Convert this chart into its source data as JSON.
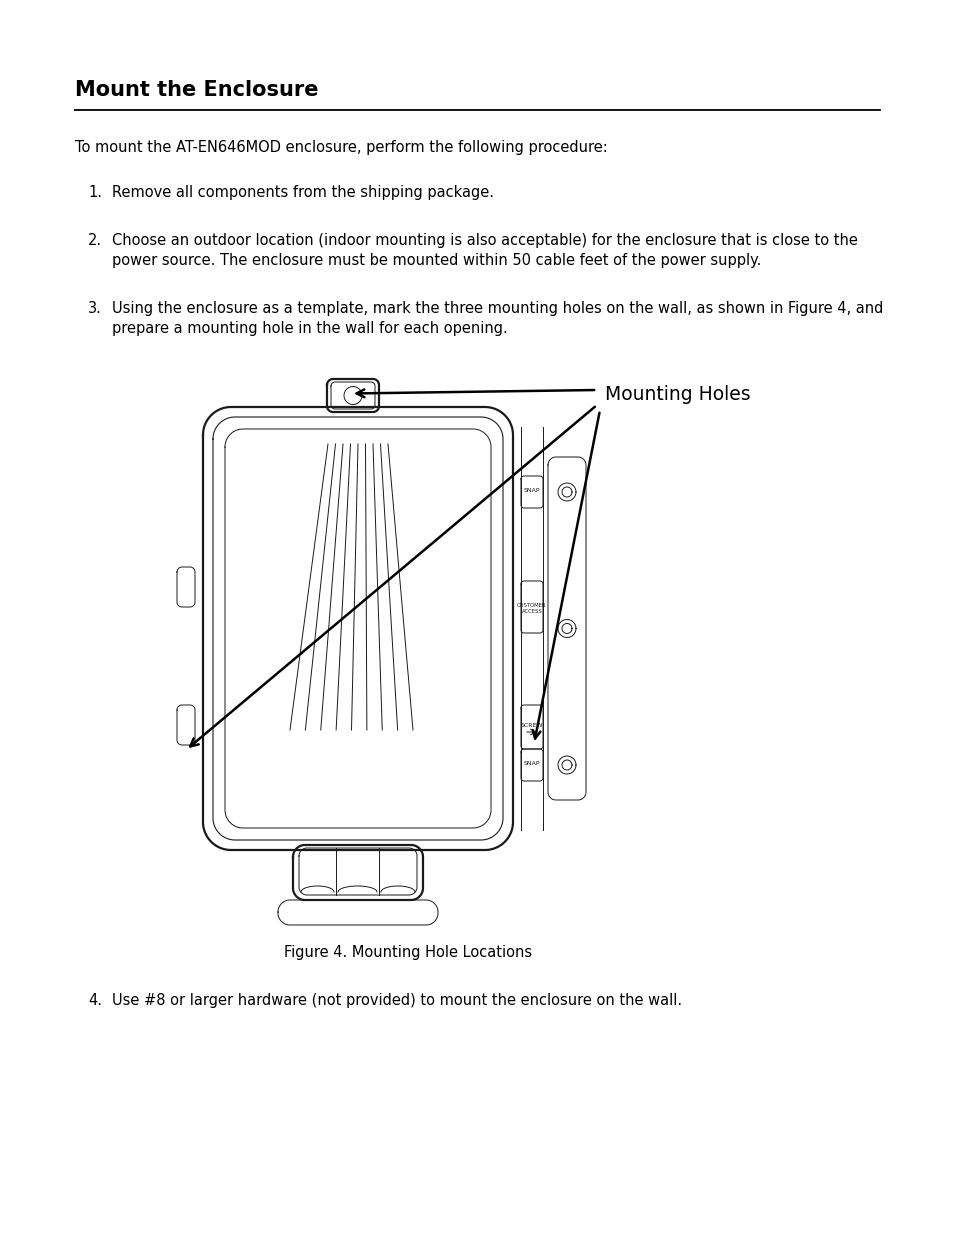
{
  "title": "Mount the Enclosure",
  "bg_color": "#ffffff",
  "text_color": "#000000",
  "title_fontsize": 15,
  "body_fontsize": 10.5,
  "intro_text": "To mount the AT-EN646MOD enclosure, perform the following procedure:",
  "step1": "Remove all components from the shipping package.",
  "step2a": "Choose an outdoor location (indoor mounting is also acceptable) for the enclosure that is close to the",
  "step2b": "power source. The enclosure must be mounted within 50 cable feet of the power supply.",
  "step3a": "Using the enclosure as a template, mark the three mounting holes on the wall, as shown in Figure 4, and",
  "step3b": "prepare a mounting hole in the wall for each opening.",
  "step4": "Use #8 or larger hardware (not provided) to mount the enclosure on the wall.",
  "figure_caption": "Figure 4. Mounting Hole Locations",
  "annotation_label": "Mounting Holes",
  "lc": "#1a1a1a",
  "lw_outer": 1.8,
  "lw_inner": 1.0,
  "lw_thin": 0.7
}
